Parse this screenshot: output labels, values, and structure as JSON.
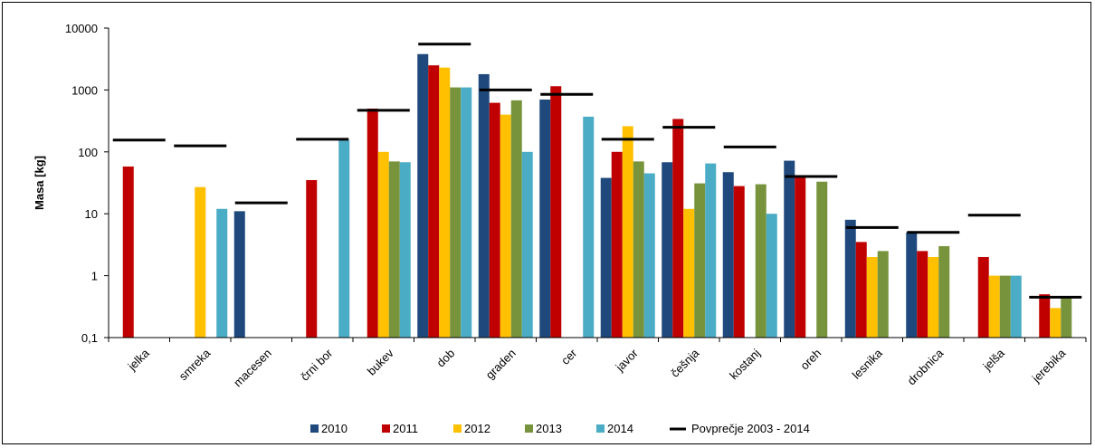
{
  "chart_data": {
    "type": "bar",
    "title": "",
    "xlabel": "",
    "ylabel": "Masa [kg]",
    "yscale": "log",
    "ylim": [
      0.1,
      10000
    ],
    "y_ticks": [
      "0,1",
      "1",
      "10",
      "100",
      "1000",
      "10000"
    ],
    "y_tick_values": [
      0.1,
      1,
      10,
      100,
      1000,
      10000
    ],
    "grid": false,
    "legend_position": "bottom",
    "categories": [
      "jelka",
      "smreka",
      "macesen",
      "črni bor",
      "bukev",
      "dob",
      "graden",
      "cer",
      "javor",
      "češnja",
      "kostanj",
      "oreh",
      "lesnika",
      "drobnica",
      "jelša",
      "jerebika"
    ],
    "series": [
      {
        "name": "2010",
        "color": "#1F497D",
        "values": [
          null,
          null,
          11,
          null,
          null,
          3800,
          1800,
          700,
          38,
          68,
          47,
          72,
          8,
          5,
          null,
          null
        ]
      },
      {
        "name": "2011",
        "color": "#C00000",
        "values": [
          58,
          null,
          null,
          35,
          500,
          2500,
          620,
          1150,
          100,
          340,
          28,
          38,
          3.5,
          2.5,
          2,
          0.5
        ]
      },
      {
        "name": "2012",
        "color": "#FFC000",
        "values": [
          null,
          27,
          null,
          null,
          100,
          2300,
          400,
          null,
          260,
          12,
          null,
          null,
          2,
          2,
          1,
          0.3
        ]
      },
      {
        "name": "2013",
        "color": "#77933C",
        "values": [
          null,
          null,
          null,
          null,
          70,
          1100,
          680,
          null,
          70,
          31,
          30,
          33,
          2.5,
          3,
          1,
          0.45
        ]
      },
      {
        "name": "2014",
        "color": "#4BACC6",
        "values": [
          null,
          12,
          null,
          155,
          68,
          1100,
          100,
          370,
          45,
          65,
          10,
          null,
          null,
          null,
          1,
          null
        ]
      }
    ],
    "average": {
      "name": "Povprečje 2003 - 2014",
      "color": "#000000",
      "values": [
        155,
        125,
        15,
        160,
        470,
        5500,
        1000,
        850,
        160,
        250,
        120,
        40,
        6,
        5,
        9.5,
        0.45
      ]
    }
  }
}
